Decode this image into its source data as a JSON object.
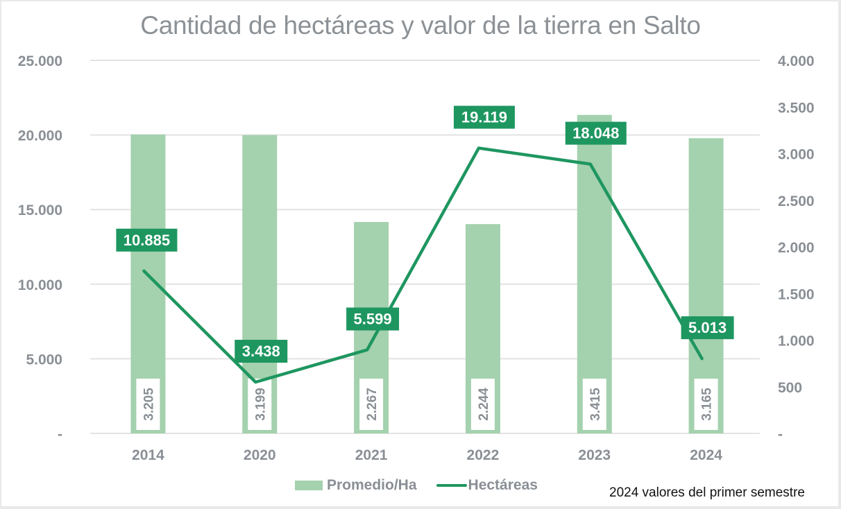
{
  "chart_data": {
    "type": "bar+line",
    "title": "Cantidad de hectáreas y valor de la tierra en Salto",
    "categories": [
      "2014",
      "2020",
      "2021",
      "2022",
      "2023",
      "2024"
    ],
    "series": [
      {
        "name": "Promedio/Ha",
        "type": "bar",
        "axis": "right",
        "values": [
          3205,
          3199,
          2267,
          2244,
          3415,
          3165
        ],
        "labels": [
          "3.205",
          "3.199",
          "2.267",
          "2.244",
          "3.415",
          "3.165"
        ],
        "color": "#a4d1ae"
      },
      {
        "name": "Hectáreas",
        "type": "line",
        "axis": "left",
        "values": [
          10885,
          3438,
          5599,
          19119,
          18048,
          5013
        ],
        "labels": [
          "10.885",
          "3.438",
          "5.599",
          "19.119",
          "18.048",
          "5.013"
        ],
        "color": "#1e9660"
      }
    ],
    "left_axis": {
      "range": [
        0,
        25000
      ],
      "ticks": [
        0,
        5000,
        10000,
        15000,
        20000,
        25000
      ],
      "tick_labels": [
        "-",
        "5.000",
        "10.000",
        "15.000",
        "20.000",
        "25.000"
      ]
    },
    "right_axis": {
      "range": [
        0,
        4000
      ],
      "ticks": [
        0,
        500,
        1000,
        1500,
        2000,
        2500,
        3000,
        3500,
        4000
      ],
      "tick_labels": [
        "-",
        "500",
        "1.000",
        "1.500",
        "2.000",
        "2.500",
        "3.000",
        "3.500",
        "4.000"
      ]
    },
    "grid": true,
    "legend_position": "bottom",
    "legend": [
      "Promedio/Ha",
      "Hectáreas"
    ],
    "annotation": "2024 valores del primer semestre",
    "colors": {
      "bar": "#a4d1ae",
      "line": "#1e9660",
      "text": "#8a8f95",
      "grid": "#e3e3e3"
    }
  }
}
